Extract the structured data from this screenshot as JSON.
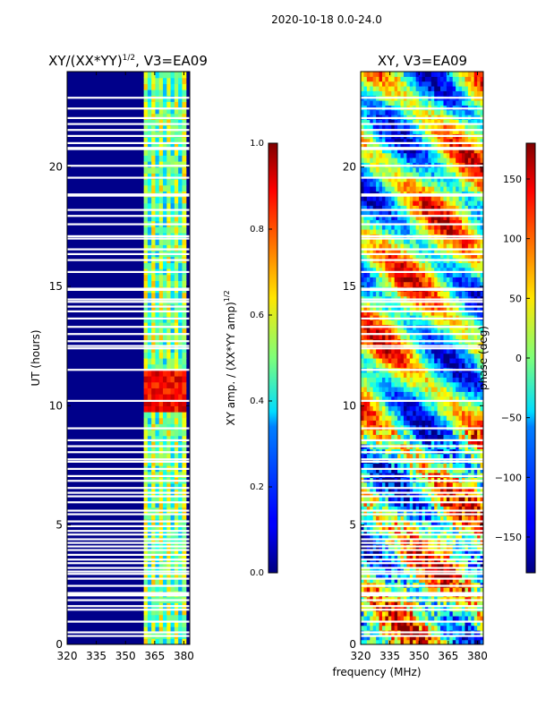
{
  "figure": {
    "suptitle": "2020-10-18 0.0-24.0",
    "shared_xlabel": "frequency (MHz)"
  },
  "chart_data": [
    {
      "type": "heatmap",
      "title": "XY/(XX*YY)",
      "title_exponent": "1/2",
      "title_suffix": ", V3=EA09",
      "xlabel": "",
      "ylabel": "UT (hours)",
      "xlim": [
        320,
        383
      ],
      "ylim": [
        0,
        24
      ],
      "xticks": [
        320,
        335,
        350,
        365,
        380
      ],
      "yticks": [
        0,
        5,
        10,
        15,
        20
      ],
      "colormap": "jet",
      "colorbar": {
        "label": "XY amp. / (XX*YY amp)",
        "label_exponent": "1/2",
        "range": [
          0.0,
          1.0
        ],
        "ticks": [
          "0.0",
          "0.2",
          "0.4",
          "0.6",
          "0.8",
          "1.0"
        ]
      },
      "description_values": {
        "background_level": 0.08,
        "band_freq_range": [
          359,
          380
        ],
        "band_level": 0.45,
        "hot_time_range": [
          9.6,
          11.3
        ],
        "hot_level": 0.95
      }
    },
    {
      "type": "heatmap",
      "title": "XY, V3=EA09",
      "xlabel": "frequency (MHz)",
      "ylabel": "",
      "xlim": [
        320,
        383
      ],
      "ylim": [
        0,
        24
      ],
      "xticks": [
        320,
        335,
        350,
        365,
        380
      ],
      "yticks": [
        0,
        5,
        10,
        15,
        20
      ],
      "colormap": "jet",
      "colorbar": {
        "label": "phase (deg)",
        "range": [
          -180,
          180
        ],
        "ticks": [
          "150",
          "100",
          "50",
          "0",
          "−50",
          "−100",
          "−150"
        ],
        "tick_values": [
          150,
          100,
          50,
          0,
          -50,
          -100,
          -150
        ]
      }
    }
  ],
  "flagged_times": [
    0.35,
    0.5,
    0.95,
    1.45,
    1.6,
    1.85,
    2.05,
    2.1,
    2.15,
    2.45,
    2.75,
    2.95,
    3.05,
    3.2,
    3.4,
    3.55,
    3.75,
    3.95,
    4.1,
    4.25,
    4.4,
    4.6,
    4.75,
    4.95,
    5.15,
    5.45,
    5.6,
    5.95,
    6.2,
    6.35,
    6.55,
    6.85,
    7.05,
    7.35,
    7.65,
    7.75,
    8.05,
    8.3,
    8.55,
    9.05,
    10.2,
    11.5,
    12.4,
    12.5,
    12.7,
    13.0,
    13.3,
    13.65,
    13.95,
    14.15,
    14.35,
    14.45,
    14.85,
    14.9,
    15.6,
    16.1,
    16.35,
    16.55,
    17.0,
    17.1,
    17.6,
    17.95,
    18.2,
    18.8,
    18.85,
    19.55,
    20.05,
    20.75,
    20.8,
    21.0,
    21.3,
    21.55,
    21.8,
    22.05,
    22.45,
    22.9
  ]
}
